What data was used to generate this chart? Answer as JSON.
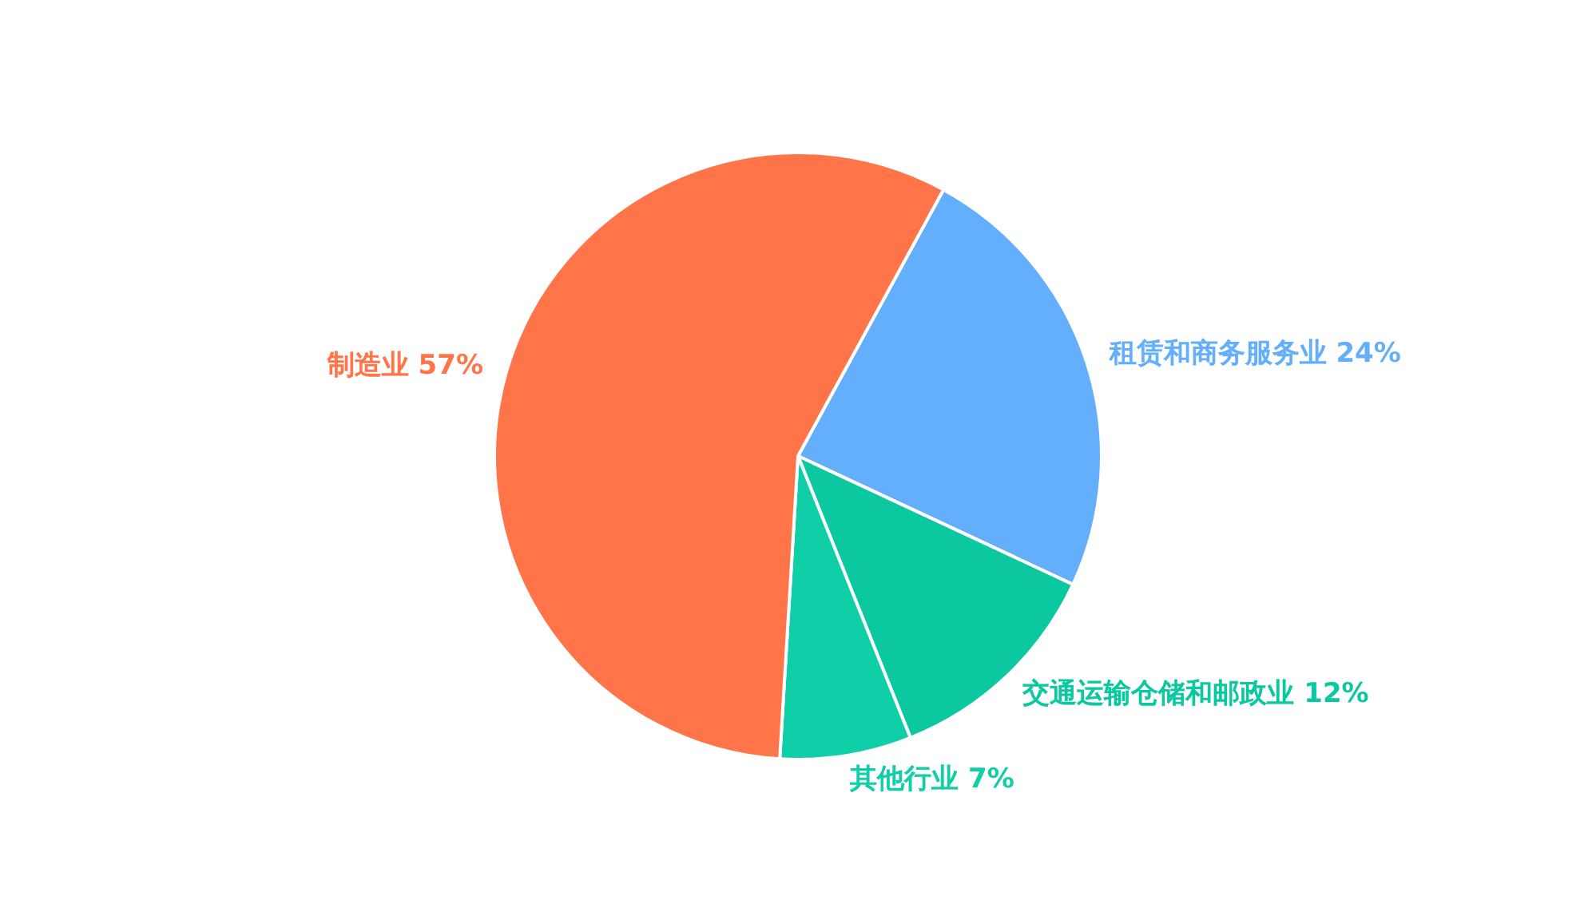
{
  "chart_data": {
    "type": "pie",
    "categories": [
      "租赁和商务服务业",
      "交通运输仓储和邮政业",
      "其他行业",
      "制造业"
    ],
    "values": [
      24,
      12,
      7,
      57
    ],
    "value_labels": [
      "24%",
      "12%",
      "7%",
      "57%"
    ],
    "colors": [
      "#64affb",
      "#0cc8a0",
      "#10cfa8",
      "#ff7549"
    ],
    "legend": false
  }
}
